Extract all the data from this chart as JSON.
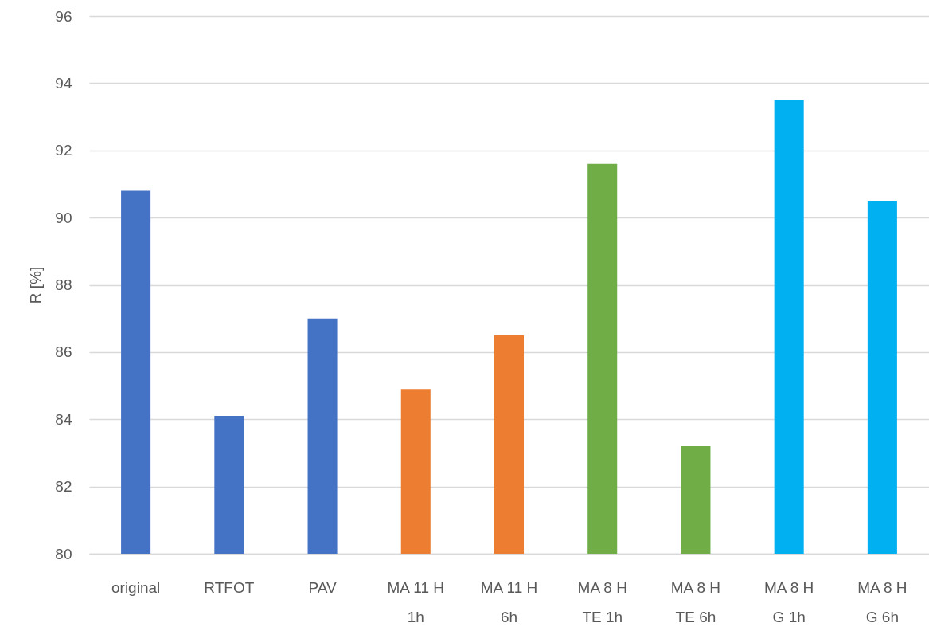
{
  "chart_data": {
    "type": "bar",
    "ylabel": "R [%]",
    "categories": [
      "original",
      "RTFOT",
      "PAV",
      "MA 11 H 1h",
      "MA 11 H 6h",
      "MA 8 H TE 1h",
      "MA 8 H TE 6h",
      "MA 8 H G 1h",
      "MA 8 H G 6h"
    ],
    "values": [
      90.8,
      84.1,
      87.0,
      84.9,
      86.5,
      91.6,
      83.2,
      93.5,
      90.5
    ],
    "colors": [
      "#4472c4",
      "#4472c4",
      "#4472c4",
      "#ed7d31",
      "#ed7d31",
      "#70ad47",
      "#70ad47",
      "#00b0f0",
      "#00b0f0"
    ],
    "ylim": [
      80,
      96
    ],
    "yticks": [
      80,
      82,
      84,
      86,
      88,
      90,
      92,
      94,
      96
    ],
    "grid": "y"
  }
}
